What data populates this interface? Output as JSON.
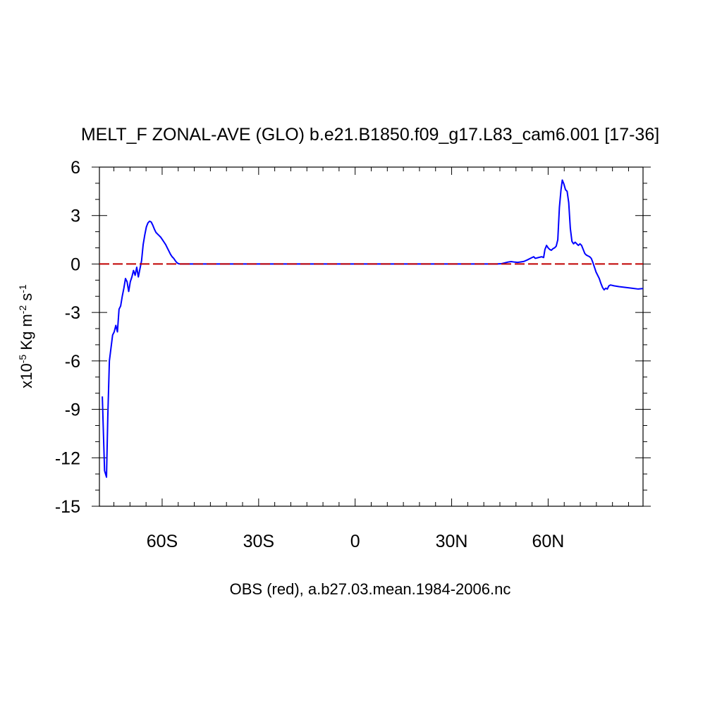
{
  "chart_data": {
    "type": "line",
    "title": "MELT_F ZONAL-AVE (GLO) b.e21.B1850.f09_g17.L83_cam6.001 [17-36]",
    "xlabel": "OBS (red), a.b27.03.mean.1984-2006.nc",
    "ylabel": {
      "prefix": "x10",
      "exp1": "-5",
      "middle": " Kg m",
      "exp2": "-2",
      "unit": " s",
      "exp3": "-1"
    },
    "xlim": [
      -79.5,
      89.5
    ],
    "ylim": [
      -15,
      6
    ],
    "x_ticks": [
      {
        "value": -60,
        "label": "60S"
      },
      {
        "value": -30,
        "label": "30S"
      },
      {
        "value": 0,
        "label": "0"
      },
      {
        "value": 30,
        "label": "30N"
      },
      {
        "value": 60,
        "label": "60N"
      }
    ],
    "y_ticks": [
      {
        "value": 6,
        "label": "6"
      },
      {
        "value": 3,
        "label": "3"
      },
      {
        "value": 0,
        "label": "0"
      },
      {
        "value": -3,
        "label": "-3"
      },
      {
        "value": -6,
        "label": "-6"
      },
      {
        "value": -9,
        "label": "-9"
      },
      {
        "value": -12,
        "label": "-12"
      },
      {
        "value": -15,
        "label": "-15"
      }
    ],
    "grid": false,
    "series": [
      {
        "color": "#0000ff",
        "style": "solid",
        "points": [
          [
            -78.6,
            -8.2
          ],
          [
            -77.9,
            -12.8
          ],
          [
            -77.3,
            -13.2
          ],
          [
            -76.9,
            -9.5
          ],
          [
            -76.4,
            -6.0
          ],
          [
            -75.9,
            -5.2
          ],
          [
            -75.4,
            -4.4
          ],
          [
            -74.9,
            -4.2
          ],
          [
            -74.4,
            -3.8
          ],
          [
            -73.9,
            -4.2
          ],
          [
            -73.4,
            -2.8
          ],
          [
            -72.9,
            -2.6
          ],
          [
            -72.4,
            -2.0
          ],
          [
            -71.9,
            -1.5
          ],
          [
            -71.4,
            -0.9
          ],
          [
            -70.9,
            -1.1
          ],
          [
            -70.4,
            -1.7
          ],
          [
            -69.9,
            -1.1
          ],
          [
            -69.4,
            -0.8
          ],
          [
            -68.9,
            -0.4
          ],
          [
            -68.4,
            -0.7
          ],
          [
            -67.9,
            -0.2
          ],
          [
            -67.4,
            -0.8
          ],
          [
            -66.9,
            -0.3
          ],
          [
            -66.4,
            0.2
          ],
          [
            -65.9,
            1.2
          ],
          [
            -65.4,
            1.8
          ],
          [
            -64.9,
            2.3
          ],
          [
            -64.4,
            2.55
          ],
          [
            -63.9,
            2.65
          ],
          [
            -63.4,
            2.6
          ],
          [
            -62.9,
            2.4
          ],
          [
            -62.4,
            2.15
          ],
          [
            -61.9,
            1.95
          ],
          [
            -61.4,
            1.85
          ],
          [
            -60.9,
            1.75
          ],
          [
            -60.4,
            1.65
          ],
          [
            -59.9,
            1.5
          ],
          [
            -59.4,
            1.35
          ],
          [
            -58.9,
            1.2
          ],
          [
            -58.4,
            1.0
          ],
          [
            -57.9,
            0.8
          ],
          [
            -57.4,
            0.6
          ],
          [
            -56.9,
            0.45
          ],
          [
            -56.4,
            0.35
          ],
          [
            -55.9,
            0.2
          ],
          [
            -55.4,
            0.08
          ],
          [
            -54.9,
            0.02
          ],
          [
            -54.4,
            0.0
          ],
          [
            -50,
            0.0
          ],
          [
            -30,
            0.0
          ],
          [
            0,
            0.0
          ],
          [
            30,
            0.0
          ],
          [
            44,
            0.0
          ],
          [
            45.5,
            0.02
          ],
          [
            46.5,
            0.07
          ],
          [
            47.5,
            0.12
          ],
          [
            48.5,
            0.15
          ],
          [
            49.5,
            0.12
          ],
          [
            50.5,
            0.1
          ],
          [
            51.5,
            0.13
          ],
          [
            52.5,
            0.16
          ],
          [
            53.5,
            0.25
          ],
          [
            54.5,
            0.35
          ],
          [
            55.5,
            0.45
          ],
          [
            56,
            0.35
          ],
          [
            57,
            0.4
          ],
          [
            58,
            0.45
          ],
          [
            58.6,
            0.4
          ],
          [
            59.0,
            0.9
          ],
          [
            59.5,
            1.15
          ],
          [
            60.0,
            1.0
          ],
          [
            60.5,
            0.9
          ],
          [
            61.0,
            0.85
          ],
          [
            61.5,
            0.95
          ],
          [
            62.0,
            1.0
          ],
          [
            62.5,
            1.1
          ],
          [
            63.0,
            1.5
          ],
          [
            63.5,
            3.5
          ],
          [
            64.0,
            4.6
          ],
          [
            64.4,
            5.2
          ],
          [
            64.9,
            4.95
          ],
          [
            65.4,
            4.6
          ],
          [
            65.9,
            4.5
          ],
          [
            66.4,
            3.8
          ],
          [
            66.9,
            2.2
          ],
          [
            67.4,
            1.4
          ],
          [
            67.9,
            1.25
          ],
          [
            68.4,
            1.35
          ],
          [
            68.9,
            1.25
          ],
          [
            69.4,
            1.15
          ],
          [
            69.9,
            1.25
          ],
          [
            70.4,
            1.15
          ],
          [
            70.9,
            0.9
          ],
          [
            71.4,
            0.65
          ],
          [
            71.9,
            0.55
          ],
          [
            72.4,
            0.5
          ],
          [
            72.9,
            0.45
          ],
          [
            73.4,
            0.35
          ],
          [
            73.9,
            0.1
          ],
          [
            74.4,
            -0.2
          ],
          [
            74.9,
            -0.5
          ],
          [
            75.4,
            -0.7
          ],
          [
            75.9,
            -0.9
          ],
          [
            76.4,
            -1.2
          ],
          [
            76.9,
            -1.45
          ],
          [
            77.4,
            -1.6
          ],
          [
            77.9,
            -1.5
          ],
          [
            78.4,
            -1.55
          ],
          [
            78.9,
            -1.35
          ],
          [
            79.4,
            -1.3
          ],
          [
            80.5,
            -1.35
          ],
          [
            82,
            -1.4
          ],
          [
            84,
            -1.45
          ],
          [
            86,
            -1.5
          ],
          [
            88,
            -1.55
          ],
          [
            89.5,
            -1.52
          ]
        ]
      },
      {
        "color": "#c00000",
        "style": "dashed",
        "points": [
          [
            -79.5,
            0.0
          ],
          [
            89.5,
            0.0
          ]
        ]
      }
    ]
  }
}
